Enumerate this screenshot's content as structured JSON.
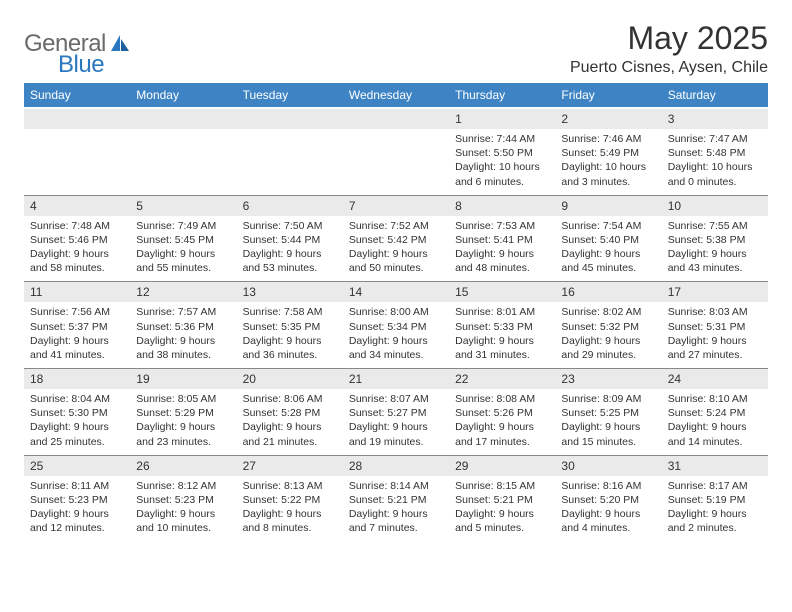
{
  "logo": {
    "text_gray": "General",
    "text_blue": "Blue"
  },
  "header": {
    "month_title": "May 2025",
    "location": "Puerto Cisnes, Aysen, Chile"
  },
  "colors": {
    "header_bg": "#3e84c5",
    "header_text": "#ffffff",
    "daynum_bg": "#eaeaea",
    "divider": "#888888",
    "body_text": "#333333",
    "logo_gray": "#6a6a6a",
    "logo_blue": "#2a78bf"
  },
  "weekdays": [
    "Sunday",
    "Monday",
    "Tuesday",
    "Wednesday",
    "Thursday",
    "Friday",
    "Saturday"
  ],
  "weeks": [
    {
      "daynums": [
        "",
        "",
        "",
        "",
        "1",
        "2",
        "3"
      ],
      "info": [
        "",
        "",
        "",
        "",
        "Sunrise: 7:44 AM\nSunset: 5:50 PM\nDaylight: 10 hours and 6 minutes.",
        "Sunrise: 7:46 AM\nSunset: 5:49 PM\nDaylight: 10 hours and 3 minutes.",
        "Sunrise: 7:47 AM\nSunset: 5:48 PM\nDaylight: 10 hours and 0 minutes."
      ]
    },
    {
      "daynums": [
        "4",
        "5",
        "6",
        "7",
        "8",
        "9",
        "10"
      ],
      "info": [
        "Sunrise: 7:48 AM\nSunset: 5:46 PM\nDaylight: 9 hours and 58 minutes.",
        "Sunrise: 7:49 AM\nSunset: 5:45 PM\nDaylight: 9 hours and 55 minutes.",
        "Sunrise: 7:50 AM\nSunset: 5:44 PM\nDaylight: 9 hours and 53 minutes.",
        "Sunrise: 7:52 AM\nSunset: 5:42 PM\nDaylight: 9 hours and 50 minutes.",
        "Sunrise: 7:53 AM\nSunset: 5:41 PM\nDaylight: 9 hours and 48 minutes.",
        "Sunrise: 7:54 AM\nSunset: 5:40 PM\nDaylight: 9 hours and 45 minutes.",
        "Sunrise: 7:55 AM\nSunset: 5:38 PM\nDaylight: 9 hours and 43 minutes."
      ]
    },
    {
      "daynums": [
        "11",
        "12",
        "13",
        "14",
        "15",
        "16",
        "17"
      ],
      "info": [
        "Sunrise: 7:56 AM\nSunset: 5:37 PM\nDaylight: 9 hours and 41 minutes.",
        "Sunrise: 7:57 AM\nSunset: 5:36 PM\nDaylight: 9 hours and 38 minutes.",
        "Sunrise: 7:58 AM\nSunset: 5:35 PM\nDaylight: 9 hours and 36 minutes.",
        "Sunrise: 8:00 AM\nSunset: 5:34 PM\nDaylight: 9 hours and 34 minutes.",
        "Sunrise: 8:01 AM\nSunset: 5:33 PM\nDaylight: 9 hours and 31 minutes.",
        "Sunrise: 8:02 AM\nSunset: 5:32 PM\nDaylight: 9 hours and 29 minutes.",
        "Sunrise: 8:03 AM\nSunset: 5:31 PM\nDaylight: 9 hours and 27 minutes."
      ]
    },
    {
      "daynums": [
        "18",
        "19",
        "20",
        "21",
        "22",
        "23",
        "24"
      ],
      "info": [
        "Sunrise: 8:04 AM\nSunset: 5:30 PM\nDaylight: 9 hours and 25 minutes.",
        "Sunrise: 8:05 AM\nSunset: 5:29 PM\nDaylight: 9 hours and 23 minutes.",
        "Sunrise: 8:06 AM\nSunset: 5:28 PM\nDaylight: 9 hours and 21 minutes.",
        "Sunrise: 8:07 AM\nSunset: 5:27 PM\nDaylight: 9 hours and 19 minutes.",
        "Sunrise: 8:08 AM\nSunset: 5:26 PM\nDaylight: 9 hours and 17 minutes.",
        "Sunrise: 8:09 AM\nSunset: 5:25 PM\nDaylight: 9 hours and 15 minutes.",
        "Sunrise: 8:10 AM\nSunset: 5:24 PM\nDaylight: 9 hours and 14 minutes."
      ]
    },
    {
      "daynums": [
        "25",
        "26",
        "27",
        "28",
        "29",
        "30",
        "31"
      ],
      "info": [
        "Sunrise: 8:11 AM\nSunset: 5:23 PM\nDaylight: 9 hours and 12 minutes.",
        "Sunrise: 8:12 AM\nSunset: 5:23 PM\nDaylight: 9 hours and 10 minutes.",
        "Sunrise: 8:13 AM\nSunset: 5:22 PM\nDaylight: 9 hours and 8 minutes.",
        "Sunrise: 8:14 AM\nSunset: 5:21 PM\nDaylight: 9 hours and 7 minutes.",
        "Sunrise: 8:15 AM\nSunset: 5:21 PM\nDaylight: 9 hours and 5 minutes.",
        "Sunrise: 8:16 AM\nSunset: 5:20 PM\nDaylight: 9 hours and 4 minutes.",
        "Sunrise: 8:17 AM\nSunset: 5:19 PM\nDaylight: 9 hours and 2 minutes."
      ]
    }
  ]
}
